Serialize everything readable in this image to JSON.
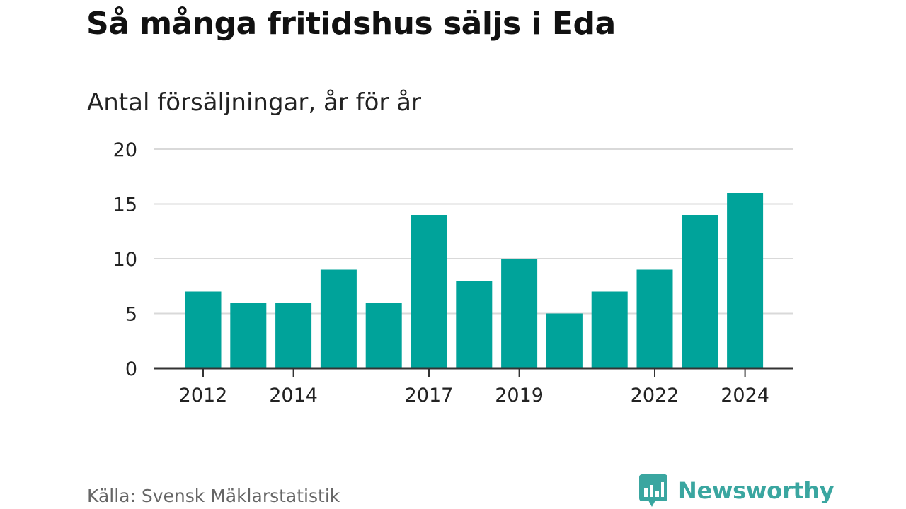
{
  "header": {
    "title": "Så många fritidshus säljs i Eda",
    "subtitle": "Antal försäljningar, år för år"
  },
  "footer": {
    "source": "Källa: Svensk Mäklarstatistik",
    "brand": "Newsworthy",
    "brand_icon": "newsworthy-logo-icon"
  },
  "colors": {
    "bar": "#00a39a",
    "grid": "#d9d9d9",
    "axis": "#333333",
    "brand": "#3aa6a0"
  },
  "chart_data": {
    "type": "bar",
    "categories": [
      "2012",
      "2013",
      "2014",
      "2015",
      "2016",
      "2017",
      "2018",
      "2019",
      "2020",
      "2021",
      "2022",
      "2023",
      "2024"
    ],
    "values": [
      7,
      6,
      6,
      9,
      6,
      14,
      8,
      10,
      5,
      7,
      9,
      14,
      16
    ],
    "x_tick_labels": [
      "2012",
      "2014",
      "2017",
      "2019",
      "2022",
      "2024"
    ],
    "y_ticks": [
      0,
      5,
      10,
      15,
      20
    ],
    "ylim": [
      0,
      20
    ],
    "grid": true,
    "legend": "none"
  }
}
